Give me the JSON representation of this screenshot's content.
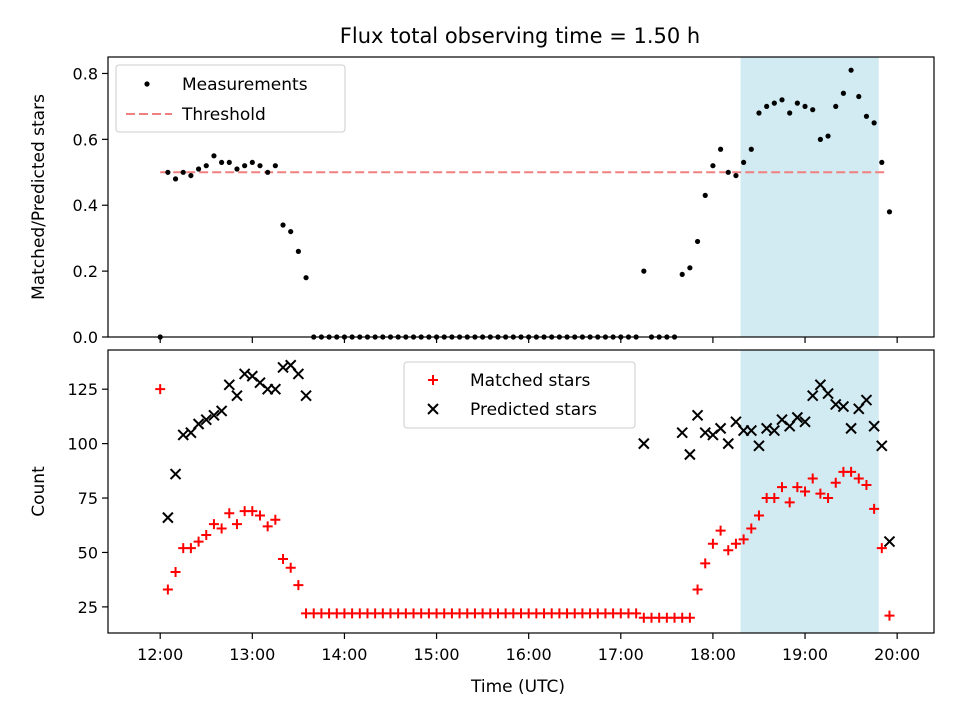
{
  "title": "Flux total observing time = 1.50 h",
  "xlabel": "Time (UTC)",
  "xticks": [
    "12:00",
    "13:00",
    "14:00",
    "15:00",
    "16:00",
    "17:00",
    "18:00",
    "19:00",
    "20:00"
  ],
  "colors": {
    "measurement": "#000000",
    "threshold": "#f08080",
    "matched": "#ff0000",
    "predicted": "#000000",
    "shade": "#add8e6"
  },
  "chart_data": [
    {
      "type": "scatter",
      "ylabel": "Matched/Predicted stars",
      "ylim": [
        0,
        0.85
      ],
      "yticks": [
        "0.0",
        "0.2",
        "0.4",
        "0.6",
        "0.8"
      ],
      "shaded_span": [
        "18:18",
        "19:48"
      ],
      "legend": [
        "Measurements",
        "Threshold"
      ],
      "legend_position": "upper left",
      "threshold": 0.5,
      "threshold_range": [
        "12:00",
        "19:54"
      ],
      "series": [
        {
          "name": "Measurements",
          "marker": "dot",
          "points": [
            [
              "12:00",
              0.0
            ],
            [
              "12:05",
              0.5
            ],
            [
              "12:10",
              0.48
            ],
            [
              "12:15",
              0.5
            ],
            [
              "12:20",
              0.49
            ],
            [
              "12:25",
              0.51
            ],
            [
              "12:30",
              0.52
            ],
            [
              "12:35",
              0.55
            ],
            [
              "12:40",
              0.53
            ],
            [
              "12:45",
              0.53
            ],
            [
              "12:50",
              0.51
            ],
            [
              "12:55",
              0.52
            ],
            [
              "13:00",
              0.53
            ],
            [
              "13:05",
              0.52
            ],
            [
              "13:10",
              0.5
            ],
            [
              "13:15",
              0.52
            ],
            [
              "13:20",
              0.34
            ],
            [
              "13:25",
              0.32
            ],
            [
              "13:30",
              0.26
            ],
            [
              "13:35",
              0.18
            ],
            [
              "13:40",
              0.0
            ],
            [
              "13:45",
              0.0
            ],
            [
              "13:50",
              0.0
            ],
            [
              "13:55",
              0.0
            ],
            [
              "14:00",
              0.0
            ],
            [
              "14:05",
              0.0
            ],
            [
              "14:10",
              0.0
            ],
            [
              "14:15",
              0.0
            ],
            [
              "14:20",
              0.0
            ],
            [
              "14:25",
              0.0
            ],
            [
              "14:30",
              0.0
            ],
            [
              "14:35",
              0.0
            ],
            [
              "14:40",
              0.0
            ],
            [
              "14:45",
              0.0
            ],
            [
              "14:50",
              0.0
            ],
            [
              "14:55",
              0.0
            ],
            [
              "15:00",
              0.0
            ],
            [
              "15:05",
              0.0
            ],
            [
              "15:10",
              0.0
            ],
            [
              "15:15",
              0.0
            ],
            [
              "15:20",
              0.0
            ],
            [
              "15:25",
              0.0
            ],
            [
              "15:30",
              0.0
            ],
            [
              "15:35",
              0.0
            ],
            [
              "15:40",
              0.0
            ],
            [
              "15:45",
              0.0
            ],
            [
              "15:50",
              0.0
            ],
            [
              "15:55",
              0.0
            ],
            [
              "16:00",
              0.0
            ],
            [
              "16:05",
              0.0
            ],
            [
              "16:10",
              0.0
            ],
            [
              "16:15",
              0.0
            ],
            [
              "16:20",
              0.0
            ],
            [
              "16:25",
              0.0
            ],
            [
              "16:30",
              0.0
            ],
            [
              "16:35",
              0.0
            ],
            [
              "16:40",
              0.0
            ],
            [
              "16:45",
              0.0
            ],
            [
              "16:50",
              0.0
            ],
            [
              "16:55",
              0.0
            ],
            [
              "17:00",
              0.0
            ],
            [
              "17:05",
              0.0
            ],
            [
              "17:10",
              0.0
            ],
            [
              "17:15",
              0.2
            ],
            [
              "17:20",
              0.0
            ],
            [
              "17:25",
              0.0
            ],
            [
              "17:30",
              0.0
            ],
            [
              "17:35",
              0.0
            ],
            [
              "17:40",
              0.19
            ],
            [
              "17:45",
              0.21
            ],
            [
              "17:50",
              0.29
            ],
            [
              "17:55",
              0.43
            ],
            [
              "18:00",
              0.52
            ],
            [
              "18:05",
              0.57
            ],
            [
              "18:10",
              0.5
            ],
            [
              "18:15",
              0.49
            ],
            [
              "18:20",
              0.53
            ],
            [
              "18:25",
              0.57
            ],
            [
              "18:30",
              0.68
            ],
            [
              "18:35",
              0.7
            ],
            [
              "18:40",
              0.71
            ],
            [
              "18:45",
              0.72
            ],
            [
              "18:50",
              0.68
            ],
            [
              "18:55",
              0.71
            ],
            [
              "19:00",
              0.7
            ],
            [
              "19:05",
              0.69
            ],
            [
              "19:10",
              0.6
            ],
            [
              "19:15",
              0.61
            ],
            [
              "19:20",
              0.7
            ],
            [
              "19:25",
              0.74
            ],
            [
              "19:30",
              0.81
            ],
            [
              "19:35",
              0.73
            ],
            [
              "19:40",
              0.67
            ],
            [
              "19:45",
              0.65
            ],
            [
              "19:50",
              0.53
            ],
            [
              "19:55",
              0.38
            ]
          ]
        }
      ]
    },
    {
      "type": "scatter",
      "ylabel": "Count",
      "ylim": [
        13,
        143
      ],
      "yticks": [
        "25",
        "50",
        "75",
        "100",
        "125"
      ],
      "shaded_span": [
        "18:18",
        "19:48"
      ],
      "legend": [
        "Matched stars",
        "Predicted stars"
      ],
      "legend_position": "upper center",
      "series": [
        {
          "name": "Matched stars",
          "marker": "plus",
          "points": [
            [
              "12:00",
              125
            ],
            [
              "12:05",
              33
            ],
            [
              "12:10",
              41
            ],
            [
              "12:15",
              52
            ],
            [
              "12:20",
              52
            ],
            [
              "12:25",
              55
            ],
            [
              "12:30",
              58
            ],
            [
              "12:35",
              63
            ],
            [
              "12:40",
              61
            ],
            [
              "12:45",
              68
            ],
            [
              "12:50",
              63
            ],
            [
              "12:55",
              69
            ],
            [
              "13:00",
              69
            ],
            [
              "13:05",
              67
            ],
            [
              "13:10",
              62
            ],
            [
              "13:15",
              65
            ],
            [
              "13:20",
              47
            ],
            [
              "13:25",
              43
            ],
            [
              "13:30",
              35
            ],
            [
              "13:35",
              22
            ],
            [
              "13:40",
              22
            ],
            [
              "13:45",
              22
            ],
            [
              "13:50",
              22
            ],
            [
              "13:55",
              22
            ],
            [
              "14:00",
              22
            ],
            [
              "14:05",
              22
            ],
            [
              "14:10",
              22
            ],
            [
              "14:15",
              22
            ],
            [
              "14:20",
              22
            ],
            [
              "14:25",
              22
            ],
            [
              "14:30",
              22
            ],
            [
              "14:35",
              22
            ],
            [
              "14:40",
              22
            ],
            [
              "14:45",
              22
            ],
            [
              "14:50",
              22
            ],
            [
              "14:55",
              22
            ],
            [
              "15:00",
              22
            ],
            [
              "15:05",
              22
            ],
            [
              "15:10",
              22
            ],
            [
              "15:15",
              22
            ],
            [
              "15:20",
              22
            ],
            [
              "15:25",
              22
            ],
            [
              "15:30",
              22
            ],
            [
              "15:35",
              22
            ],
            [
              "15:40",
              22
            ],
            [
              "15:45",
              22
            ],
            [
              "15:50",
              22
            ],
            [
              "15:55",
              22
            ],
            [
              "16:00",
              22
            ],
            [
              "16:05",
              22
            ],
            [
              "16:10",
              22
            ],
            [
              "16:15",
              22
            ],
            [
              "16:20",
              22
            ],
            [
              "16:25",
              22
            ],
            [
              "16:30",
              22
            ],
            [
              "16:35",
              22
            ],
            [
              "16:40",
              22
            ],
            [
              "16:45",
              22
            ],
            [
              "16:50",
              22
            ],
            [
              "16:55",
              22
            ],
            [
              "17:00",
              22
            ],
            [
              "17:05",
              22
            ],
            [
              "17:10",
              22
            ],
            [
              "17:15",
              20
            ],
            [
              "17:20",
              20
            ],
            [
              "17:25",
              20
            ],
            [
              "17:30",
              20
            ],
            [
              "17:35",
              20
            ],
            [
              "17:40",
              20
            ],
            [
              "17:45",
              20
            ],
            [
              "17:50",
              33
            ],
            [
              "17:55",
              45
            ],
            [
              "18:00",
              54
            ],
            [
              "18:05",
              60
            ],
            [
              "18:10",
              51
            ],
            [
              "18:15",
              54
            ],
            [
              "18:20",
              56
            ],
            [
              "18:25",
              61
            ],
            [
              "18:30",
              67
            ],
            [
              "18:35",
              75
            ],
            [
              "18:40",
              75
            ],
            [
              "18:45",
              80
            ],
            [
              "18:50",
              73
            ],
            [
              "18:55",
              80
            ],
            [
              "19:00",
              78
            ],
            [
              "19:05",
              84
            ],
            [
              "19:10",
              77
            ],
            [
              "19:15",
              75
            ],
            [
              "19:20",
              82
            ],
            [
              "19:25",
              87
            ],
            [
              "19:30",
              87
            ],
            [
              "19:35",
              84
            ],
            [
              "19:40",
              81
            ],
            [
              "19:45",
              70
            ],
            [
              "19:50",
              52
            ],
            [
              "19:55",
              21
            ]
          ]
        },
        {
          "name": "Predicted stars",
          "marker": "x",
          "points": [
            [
              "12:05",
              66
            ],
            [
              "12:10",
              86
            ],
            [
              "12:15",
              104
            ],
            [
              "12:20",
              105
            ],
            [
              "12:25",
              109
            ],
            [
              "12:30",
              111
            ],
            [
              "12:35",
              113
            ],
            [
              "12:40",
              115
            ],
            [
              "12:45",
              127
            ],
            [
              "12:50",
              122
            ],
            [
              "12:55",
              132
            ],
            [
              "13:00",
              131
            ],
            [
              "13:05",
              128
            ],
            [
              "13:10",
              125
            ],
            [
              "13:15",
              125
            ],
            [
              "13:20",
              135
            ],
            [
              "13:25",
              136
            ],
            [
              "13:30",
              132
            ],
            [
              "13:35",
              122
            ],
            [
              "17:15",
              100
            ],
            [
              "17:40",
              105
            ],
            [
              "17:45",
              95
            ],
            [
              "17:50",
              113
            ],
            [
              "17:55",
              105
            ],
            [
              "18:00",
              104
            ],
            [
              "18:05",
              107
            ],
            [
              "18:10",
              100
            ],
            [
              "18:15",
              110
            ],
            [
              "18:20",
              106
            ],
            [
              "18:25",
              106
            ],
            [
              "18:30",
              99
            ],
            [
              "18:35",
              107
            ],
            [
              "18:40",
              106
            ],
            [
              "18:45",
              111
            ],
            [
              "18:50",
              108
            ],
            [
              "18:55",
              112
            ],
            [
              "19:00",
              110
            ],
            [
              "19:05",
              122
            ],
            [
              "19:10",
              127
            ],
            [
              "19:15",
              123
            ],
            [
              "19:20",
              118
            ],
            [
              "19:25",
              117
            ],
            [
              "19:30",
              107
            ],
            [
              "19:35",
              116
            ],
            [
              "19:40",
              120
            ],
            [
              "19:45",
              108
            ],
            [
              "19:50",
              99
            ],
            [
              "19:55",
              55
            ]
          ]
        }
      ]
    }
  ]
}
